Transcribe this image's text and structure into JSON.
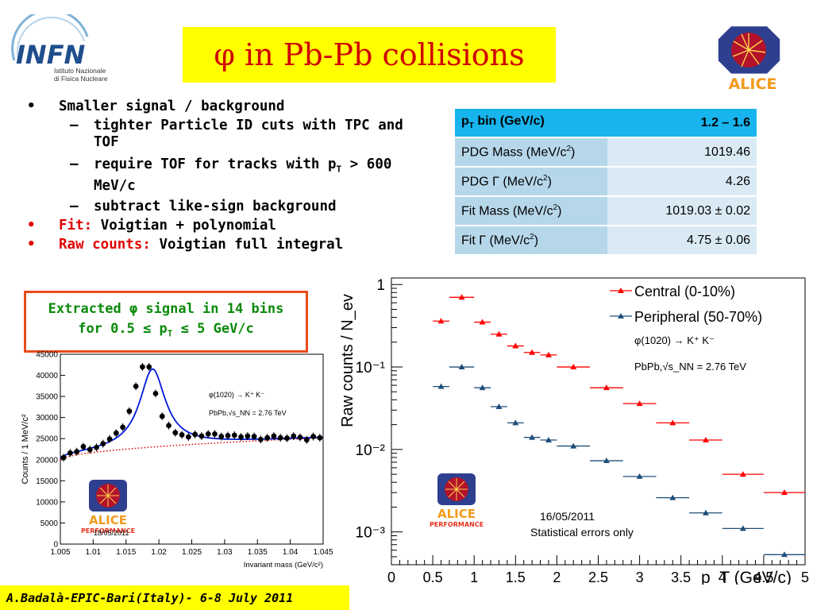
{
  "title": "φ  in Pb-Pb collisions",
  "infn": {
    "big": "INFN",
    "line1": "Istituto Nazionale",
    "line2": "di Fisica Nucleare"
  },
  "alice_logo_text": "ALICE",
  "bullets": [
    {
      "marker": "•",
      "text": "Smaller signal / background",
      "level": 0
    },
    {
      "marker": "–",
      "text": "tighter Particle ID cuts with TPC and",
      "text2": "TOF",
      "level": 1
    },
    {
      "marker": "–",
      "text": "require TOF for tracks with p",
      "sub": "T",
      "tail": " > 600",
      "text2": "MeV/c",
      "level": 1
    },
    {
      "marker": "–",
      "text": "subtract like-sign background",
      "level": 1
    },
    {
      "marker": "•",
      "label": "Fit:",
      "text": " Voigtian + polynomial",
      "level": 0
    },
    {
      "marker": "•",
      "label": "Raw counts:",
      "text": " Voigtian full integral",
      "level": 0
    }
  ],
  "table": {
    "rows": [
      {
        "label": "p",
        "label_sub": "T",
        "label_tail": " bin     (GeV/c)",
        "value": "1.2 – 1.6",
        "header": true
      },
      {
        "label": "PDG Mass (MeV/c",
        "label_sup": "2",
        "label_tail": ")",
        "value": "1019.46"
      },
      {
        "label": "PDG Γ        (MeV/c",
        "label_sup": "2",
        "label_tail": ")",
        "value": "4.26"
      },
      {
        "label": "Fit Mass   (MeV/c",
        "label_sup": "2",
        "label_tail": ")",
        "value": "1019.03 ± 0.02"
      },
      {
        "label": "Fit Γ        (MeV/c",
        "label_sup": "2",
        "label_tail": ")",
        "value": "4.75 ± 0.06"
      }
    ]
  },
  "signal_box": {
    "line1": "Extracted φ signal in 14 bins",
    "line2a": "for 0.5 ≤ p",
    "line2sub": "T",
    "line2b": " ≤ 5 GeV/c"
  },
  "footer": "A.Badalà-EPIC-Bari(Italy)- 6-8 July 2011",
  "chart_data": [
    {
      "type": "scatter",
      "name": "invariant-mass",
      "xlabel": "Invariant mass (GeV/c²)",
      "ylabel": "Counts / 1 MeV/c²",
      "xlim": [
        1.005,
        1.045
      ],
      "ylim": [
        0,
        45000
      ],
      "xticks": [
        "1.005",
        "1.01",
        "1.015",
        "1.02",
        "1.025",
        "1.03",
        "1.035",
        "1.04",
        "1.045"
      ],
      "yticks": [
        "0",
        "5000",
        "10000",
        "15000",
        "20000",
        "25000",
        "30000",
        "35000",
        "40000",
        "45000"
      ],
      "annotations": [
        "φ(1020) → K⁺ K⁻",
        "PbPb,√s_NN = 2.76 TeV",
        "18/05/2011"
      ],
      "logo": {
        "name": "ALICE",
        "sub": "PERFORMANCE"
      },
      "x": [
        1.0055,
        1.0065,
        1.0075,
        1.0085,
        1.0095,
        1.0105,
        1.0115,
        1.0125,
        1.0135,
        1.0145,
        1.0155,
        1.0165,
        1.0175,
        1.0185,
        1.0195,
        1.0205,
        1.0215,
        1.0225,
        1.0235,
        1.0245,
        1.0255,
        1.0265,
        1.0275,
        1.0285,
        1.0295,
        1.0305,
        1.0315,
        1.0325,
        1.0335,
        1.0345,
        1.0355,
        1.0365,
        1.0375,
        1.0385,
        1.0395,
        1.0405,
        1.0415,
        1.0425,
        1.0435,
        1.0445
      ],
      "y": [
        20500,
        21600,
        21900,
        23100,
        22400,
        22900,
        23800,
        24900,
        26300,
        27700,
        31500,
        37400,
        42000,
        42000,
        35700,
        30300,
        28100,
        26400,
        25900,
        25400,
        26000,
        25600,
        26100,
        26100,
        25500,
        25700,
        25800,
        25400,
        25600,
        25500,
        24800,
        25200,
        25600,
        25200,
        25100,
        25600,
        25300,
        24700,
        25500,
        25200
      ],
      "fit_peak": {
        "mass": 1.01903,
        "gamma": 0.00475,
        "amplitude": 18500
      },
      "background": {
        "at_xmin": 19800,
        "at_xmax": 25200
      }
    },
    {
      "type": "scatter",
      "name": "raw-counts",
      "xlabel": "p_T (GeV/c)",
      "ylabel": "Raw counts / N_ev",
      "xlim": [
        0,
        5
      ],
      "ylim": [
        0.0004,
        1.2
      ],
      "yscale": "log",
      "xticks": [
        "0",
        "0.5",
        "1",
        "1.5",
        "2",
        "2.5",
        "3",
        "3.5",
        "4",
        "4.5",
        "5"
      ],
      "yticks": [
        "1",
        "10⁻¹",
        "10⁻²",
        "10⁻³"
      ],
      "annotations": [
        "φ(1020) → K⁺ K⁻",
        "PbPb,√s_NN = 2.76 TeV",
        "16/05/2011",
        "Statistical errors only"
      ],
      "logo": {
        "name": "ALICE",
        "sub": "PERFORMANCE"
      },
      "legend": "top-right",
      "series": [
        {
          "name": "Central (0-10%)",
          "color": "#ff0000",
          "x": [
            0.6,
            0.85,
            1.1,
            1.3,
            1.5,
            1.7,
            1.9,
            2.2,
            2.6,
            3.0,
            3.4,
            3.8,
            4.25,
            4.75
          ],
          "xerr": [
            0.1,
            0.15,
            0.1,
            0.1,
            0.1,
            0.1,
            0.1,
            0.2,
            0.2,
            0.2,
            0.2,
            0.2,
            0.25,
            0.25
          ],
          "y": [
            0.36,
            0.7,
            0.35,
            0.25,
            0.18,
            0.15,
            0.14,
            0.1,
            0.056,
            0.036,
            0.021,
            0.013,
            0.005,
            0.003
          ]
        },
        {
          "name": "Peripheral (50-70%)",
          "color": "#1f4e79",
          "x": [
            0.6,
            0.85,
            1.1,
            1.3,
            1.5,
            1.7,
            1.9,
            2.2,
            2.6,
            3.0,
            3.4,
            3.8,
            4.25,
            4.75
          ],
          "xerr": [
            0.1,
            0.15,
            0.1,
            0.1,
            0.1,
            0.1,
            0.1,
            0.2,
            0.2,
            0.2,
            0.2,
            0.2,
            0.25,
            0.25
          ],
          "y": [
            0.058,
            0.1,
            0.056,
            0.033,
            0.021,
            0.014,
            0.013,
            0.011,
            0.0073,
            0.0047,
            0.0026,
            0.0017,
            0.0011,
            0.00053
          ]
        }
      ]
    }
  ]
}
